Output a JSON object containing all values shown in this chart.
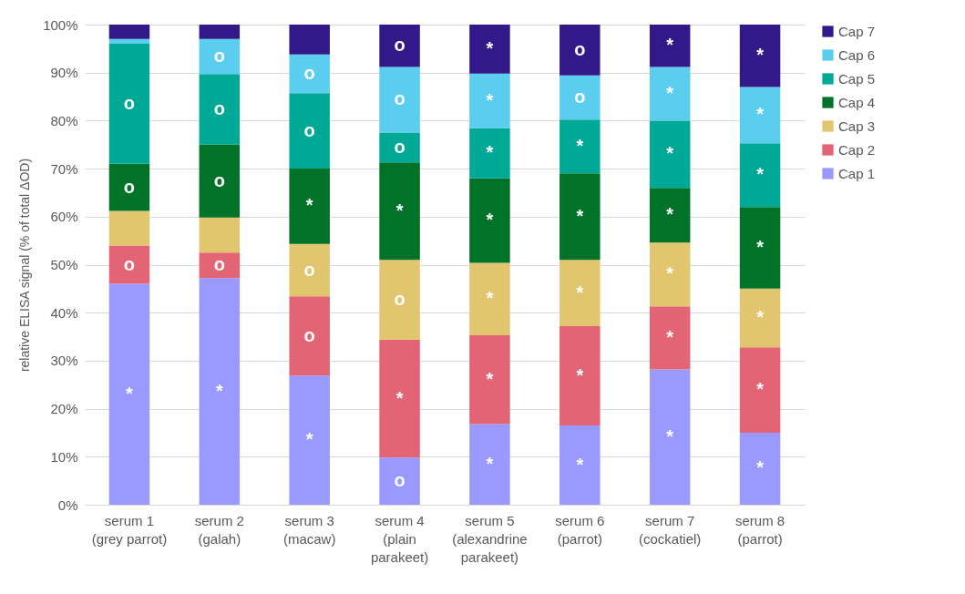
{
  "chart_data": {
    "type": "bar",
    "stacked": true,
    "ylabel": "relative ELISA signal (% of total ΔOD)",
    "categories": [
      "serum 1\n(grey parrot)",
      "serum 2\n(galah)",
      "serum 3\n(macaw)",
      "serum 4\n(plain\nparakeet)",
      "serum 5\n(alexandrine\nparakeet)",
      "serum 6\n(parrot)",
      "serum 7\n(cockatiel)",
      "serum 8\n(parrot)"
    ],
    "series": [
      {
        "name": "Cap 1",
        "color": "#9999ff",
        "values": [
          46,
          47.2,
          26.9,
          9.8,
          16.8,
          16.5,
          28.2,
          15
        ],
        "value_labels": [
          "*",
          "*",
          "*",
          "o",
          "*",
          "*",
          "*",
          "*"
        ]
      },
      {
        "name": "Cap 2",
        "color": "#e36474",
        "values": [
          8,
          5.3,
          16.5,
          24.6,
          18.5,
          20.7,
          13.1,
          17.8
        ],
        "value_labels": [
          "o",
          "o",
          "o",
          "*",
          "*",
          "*",
          "*",
          "*"
        ]
      },
      {
        "name": "Cap 3",
        "color": "#e1c66f",
        "values": [
          7.2,
          7.3,
          10.9,
          16.6,
          15.1,
          13.8,
          13.3,
          12.2
        ],
        "value_labels": [
          null,
          null,
          "o",
          "o",
          "*",
          "*",
          "*",
          "*"
        ]
      },
      {
        "name": "Cap 4",
        "color": "#007328",
        "values": [
          9.8,
          15.2,
          15.7,
          20.3,
          17.6,
          18,
          11.4,
          17
        ],
        "value_labels": [
          "o",
          "o",
          "*",
          "*",
          "*",
          "*",
          "*",
          "*"
        ]
      },
      {
        "name": "Cap 5",
        "color": "#00a896",
        "values": [
          25,
          14.7,
          15.7,
          6.2,
          10.4,
          11.2,
          14,
          13.3
        ],
        "value_labels": [
          "o",
          "o",
          "o",
          "o",
          "*",
          "*",
          "*",
          "*"
        ]
      },
      {
        "name": "Cap 6",
        "color": "#5bcdee",
        "values": [
          1,
          7.3,
          8.1,
          13.7,
          11.4,
          9.2,
          11.2,
          11.7
        ],
        "value_labels": [
          null,
          "o",
          "o",
          "o",
          "*",
          "o",
          "*",
          "*"
        ]
      },
      {
        "name": "Cap 7",
        "color": "#33188a",
        "values": [
          3,
          3,
          6.2,
          8.8,
          10.2,
          10.6,
          8.8,
          13
        ],
        "value_labels": [
          null,
          null,
          null,
          "o",
          "*",
          "o",
          "*",
          "*"
        ]
      }
    ],
    "ylim": [
      0,
      100
    ],
    "yticks": [
      {
        "value": 0,
        "label": "0%"
      },
      {
        "value": 10,
        "label": "10%"
      },
      {
        "value": 20,
        "label": "20%"
      },
      {
        "value": 30,
        "label": "30%"
      },
      {
        "value": 40,
        "label": "40%"
      },
      {
        "value": 50,
        "label": "50%"
      },
      {
        "value": 60,
        "label": "60%"
      },
      {
        "value": 70,
        "label": "70%"
      },
      {
        "value": 80,
        "label": "80%"
      },
      {
        "value": 90,
        "label": "90%"
      },
      {
        "value": 100,
        "label": "100%"
      }
    ],
    "grid": "y",
    "legend": "right"
  }
}
